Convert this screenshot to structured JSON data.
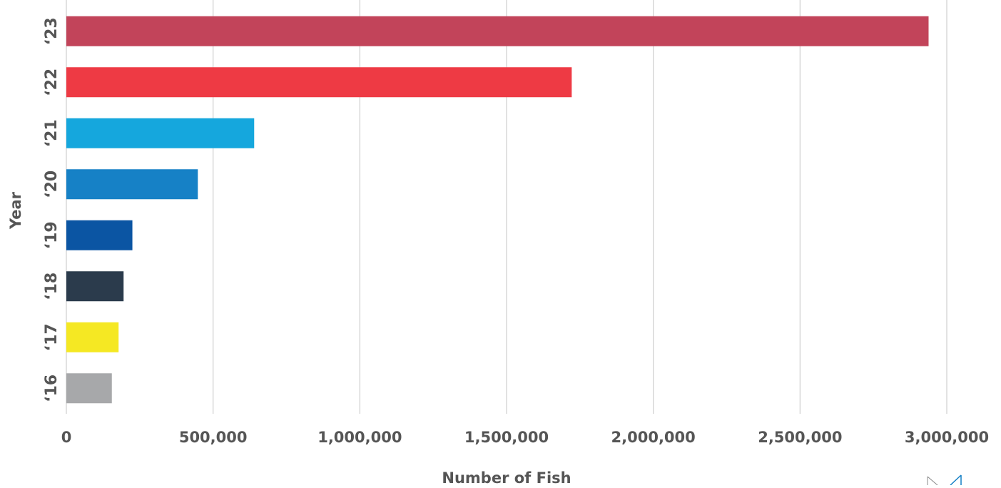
{
  "chart_data": {
    "type": "bar",
    "orientation": "horizontal",
    "categories": [
      "‘16",
      "‘17",
      "‘18",
      "‘19",
      "‘20",
      "‘21",
      "‘22",
      "‘23"
    ],
    "values": [
      155000,
      178000,
      195000,
      225000,
      448000,
      640000,
      1722000,
      2938000
    ],
    "colors": [
      "#a7a8aa",
      "#f5e823",
      "#2b3b4c",
      "#0b55a3",
      "#1681c6",
      "#15a7dd",
      "#ee3a44",
      "#c2445a"
    ],
    "xlabel": "Number of Fish",
    "ylabel": "Year",
    "xlim": [
      0,
      3000000
    ],
    "x_ticks": [
      0,
      500000,
      1000000,
      1500000,
      2000000,
      2500000,
      3000000
    ],
    "x_tick_labels": [
      "0",
      "500,000",
      "1,000,000",
      "1,500,000",
      "2,000,000",
      "2,500,000",
      "3,000,000"
    ],
    "grid": "vertical",
    "legend": "none"
  }
}
